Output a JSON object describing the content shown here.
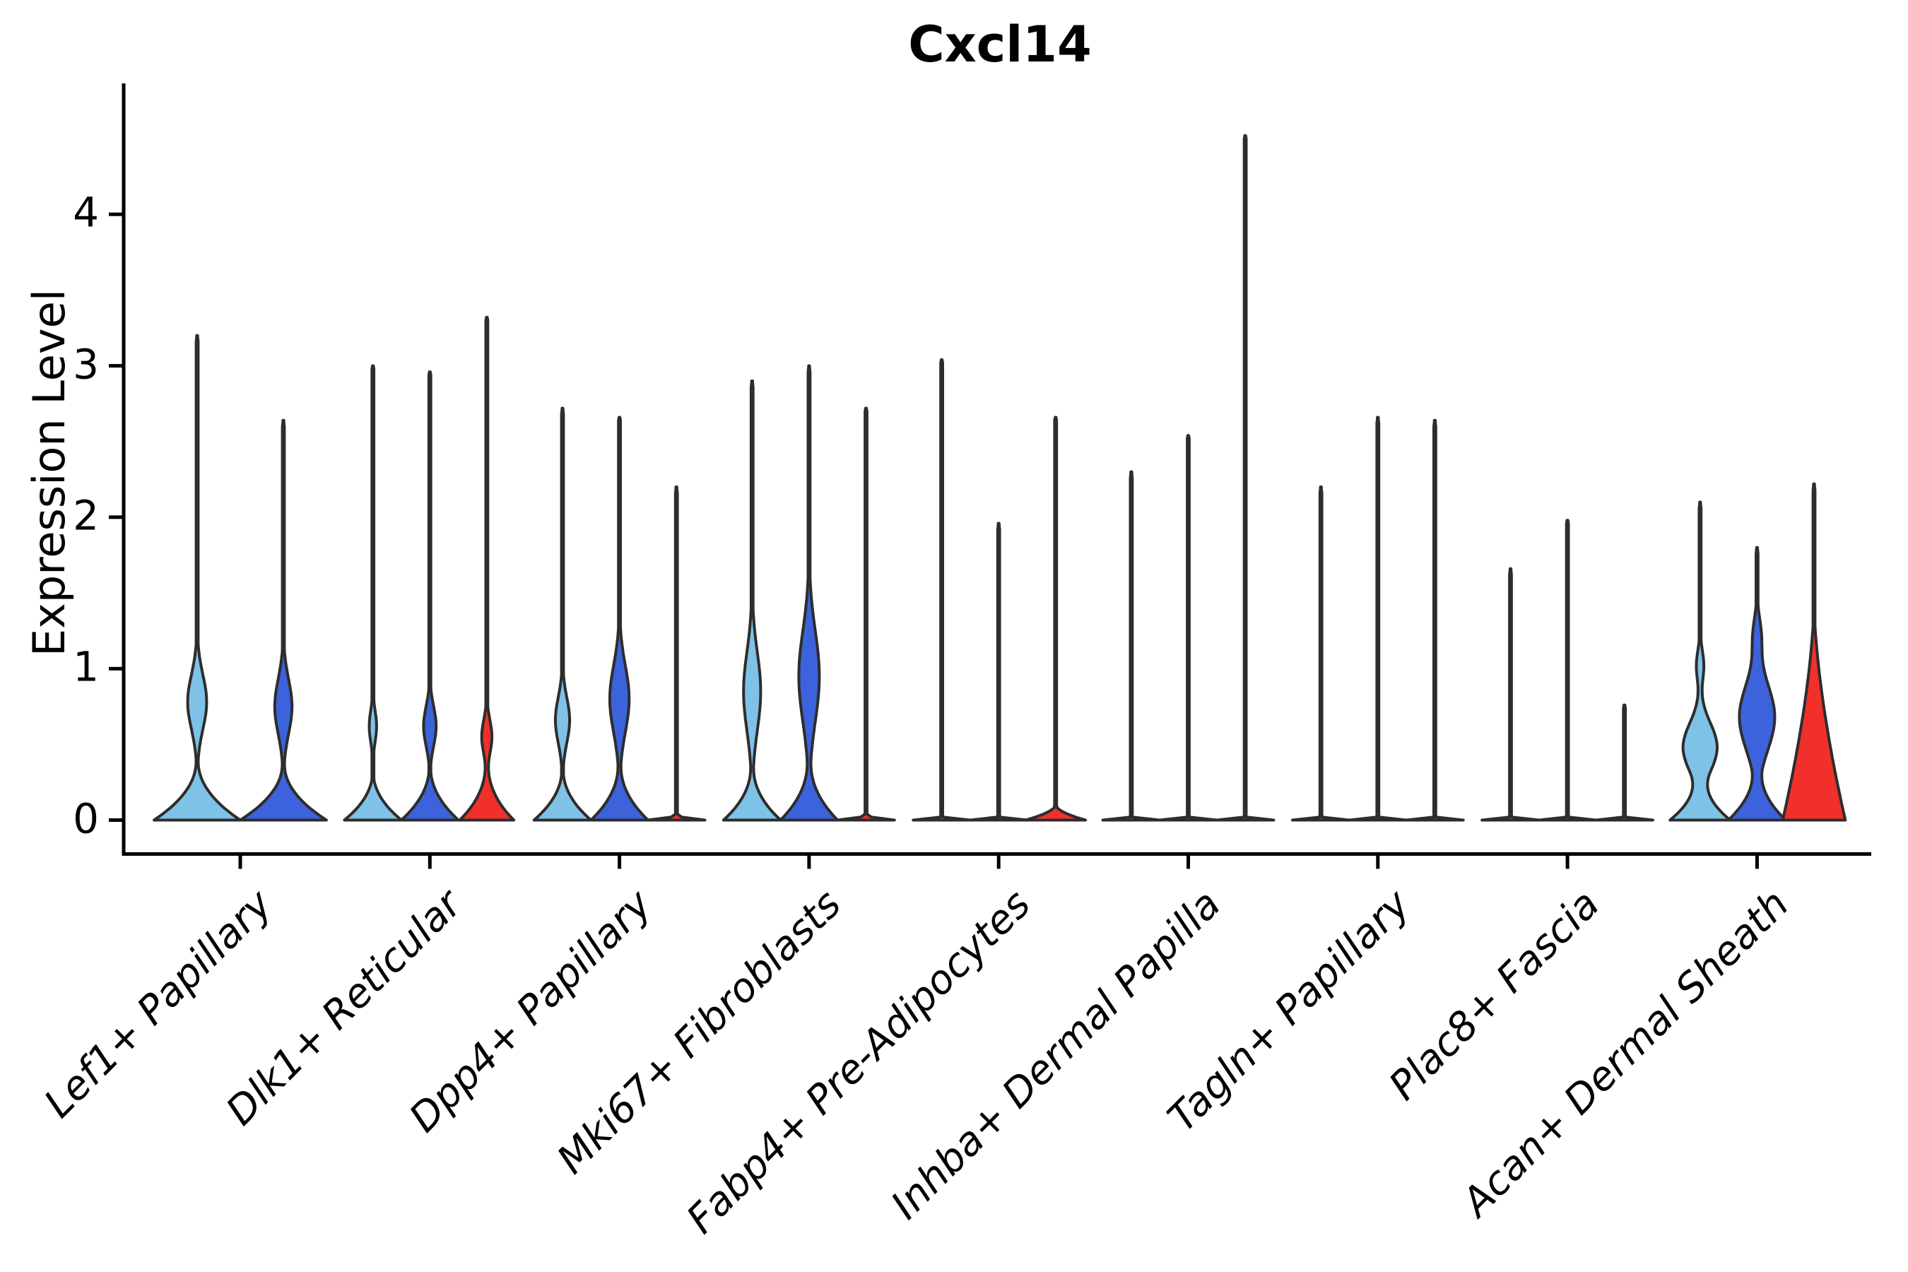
{
  "title": "Cxcl14",
  "ylabel": "Expression Level",
  "colors": {
    "light-blue": "#7FC2E8",
    "dark-blue": "#3D63DC",
    "red": "#F2302B",
    "outline": "#2D2D2D",
    "axis": "#000000"
  },
  "chart_data": {
    "type": "violin",
    "title": "Cxcl14",
    "xlabel": "",
    "ylabel": "Expression Level",
    "ylim": [
      0,
      4.75
    ],
    "y_ticks": [
      0,
      1,
      2,
      3,
      4
    ],
    "grid": false,
    "legend": "none",
    "categories": [
      "Lef1+ Papillary",
      "Dlk1+ Reticular",
      "Dpp4+ Papillary",
      "Mki67+ Fibroblasts",
      "Fabp4+ Pre-Adipocytes",
      "Inhba+ Dermal Papilla",
      "Tagln+ Papillary",
      "Plac8+ Fascia",
      "Acan+ Dermal Sheath"
    ],
    "series": [
      {
        "name": "light-blue",
        "color": "#7FC2E8",
        "max_expression": [
          3.2,
          3.01,
          2.72,
          2.9,
          3.05,
          2.3,
          2.2,
          1.66,
          2.1
        ]
      },
      {
        "name": "dark-blue",
        "color": "#3D63DC",
        "max_expression": [
          2.64,
          2.97,
          2.67,
          3.0,
          1.96,
          2.55,
          2.66,
          1.99,
          1.8
        ]
      },
      {
        "name": "red",
        "color": "#F2302B",
        "max_expression": [
          null,
          3.33,
          2.2,
          2.73,
          2.67,
          4.53,
          2.64,
          0.77,
          2.22
        ]
      }
    ],
    "violins": [
      {
        "category": 0,
        "split": "light-blue",
        "tip": 3.2,
        "w": 1.0,
        "bh": 0.42,
        "p": 2.2,
        "bulges": [
          {
            "c": 0.78,
            "w": 0.22,
            "s": 0.18
          }
        ]
      },
      {
        "category": 0,
        "split": "dark-blue",
        "tip": 2.64,
        "w": 1.0,
        "bh": 0.4,
        "p": 2.2,
        "bulges": [
          {
            "c": 0.75,
            "w": 0.2,
            "s": 0.18
          }
        ]
      },
      {
        "category": 1,
        "split": "light-blue",
        "tip": 3.01,
        "w": 1.0,
        "bh": 0.34,
        "p": 2.2,
        "bulges": [
          {
            "c": 0.62,
            "w": 0.13,
            "s": 0.1
          }
        ]
      },
      {
        "category": 1,
        "split": "dark-blue",
        "tip": 2.97,
        "w": 1.0,
        "bh": 0.38,
        "p": 2.2,
        "bulges": [
          {
            "c": 0.62,
            "w": 0.22,
            "s": 0.13
          }
        ]
      },
      {
        "category": 1,
        "split": "red",
        "tip": 3.33,
        "w": 0.95,
        "bh": 0.46,
        "p": 2.6,
        "bulges": [
          {
            "c": 0.55,
            "w": 0.18,
            "s": 0.11
          }
        ]
      },
      {
        "category": 2,
        "split": "light-blue",
        "tip": 2.72,
        "w": 1.0,
        "bh": 0.36,
        "p": 2.2,
        "bulges": [
          {
            "c": 0.66,
            "w": 0.25,
            "s": 0.15
          }
        ]
      },
      {
        "category": 2,
        "split": "dark-blue",
        "tip": 2.67,
        "w": 1.0,
        "bh": 0.4,
        "p": 2.2,
        "bulges": [
          {
            "c": 0.8,
            "w": 0.34,
            "s": 0.22
          }
        ]
      },
      {
        "category": 2,
        "split": "red",
        "tip": 2.2,
        "w": 1.0,
        "bh": 0.035,
        "p": 2.0,
        "bulges": []
      },
      {
        "category": 3,
        "split": "light-blue",
        "tip": 2.9,
        "w": 1.0,
        "bh": 0.38,
        "p": 2.2,
        "bulges": [
          {
            "c": 0.85,
            "w": 0.3,
            "s": 0.26
          }
        ]
      },
      {
        "category": 3,
        "split": "dark-blue",
        "tip": 3.0,
        "w": 1.0,
        "bh": 0.42,
        "p": 2.2,
        "bulges": [
          {
            "c": 0.95,
            "w": 0.36,
            "s": 0.3
          }
        ]
      },
      {
        "category": 3,
        "split": "red",
        "tip": 2.73,
        "w": 1.0,
        "bh": 0.035,
        "p": 2.0,
        "bulges": []
      },
      {
        "category": 4,
        "split": "light-blue",
        "tip": 3.05,
        "w": 1.0,
        "bh": 0.025,
        "p": 2.0,
        "bulges": []
      },
      {
        "category": 4,
        "split": "dark-blue",
        "tip": 1.96,
        "w": 1.0,
        "bh": 0.025,
        "p": 2.0,
        "bulges": []
      },
      {
        "category": 4,
        "split": "red",
        "tip": 2.67,
        "w": 1.05,
        "bh": 0.1,
        "p": 1.8,
        "bulges": []
      },
      {
        "category": 5,
        "split": "light-blue",
        "tip": 2.3,
        "w": 1.0,
        "bh": 0.02,
        "p": 2.0,
        "bulges": []
      },
      {
        "category": 5,
        "split": "dark-blue",
        "tip": 2.55,
        "w": 1.0,
        "bh": 0.02,
        "p": 2.0,
        "bulges": []
      },
      {
        "category": 5,
        "split": "red",
        "tip": 4.53,
        "w": 1.0,
        "bh": 0.02,
        "p": 2.0,
        "bulges": []
      },
      {
        "category": 6,
        "split": "light-blue",
        "tip": 2.2,
        "w": 1.0,
        "bh": 0.02,
        "p": 2.0,
        "bulges": []
      },
      {
        "category": 6,
        "split": "dark-blue",
        "tip": 2.66,
        "w": 1.0,
        "bh": 0.02,
        "p": 2.0,
        "bulges": []
      },
      {
        "category": 6,
        "split": "red",
        "tip": 2.64,
        "w": 1.0,
        "bh": 0.02,
        "p": 2.0,
        "bulges": []
      },
      {
        "category": 7,
        "split": "light-blue",
        "tip": 1.66,
        "w": 1.0,
        "bh": 0.02,
        "p": 2.0,
        "bulges": []
      },
      {
        "category": 7,
        "split": "dark-blue",
        "tip": 1.99,
        "w": 1.0,
        "bh": 0.02,
        "p": 2.0,
        "bulges": []
      },
      {
        "category": 7,
        "split": "red",
        "tip": 0.77,
        "w": 1.0,
        "bh": 0.02,
        "p": 2.0,
        "bulges": []
      },
      {
        "category": 8,
        "split": "light-blue",
        "tip": 2.1,
        "w": 1.05,
        "bh": 0.32,
        "p": 2.0,
        "bulges": [
          {
            "c": 0.48,
            "w": 0.6,
            "s": 0.16
          },
          {
            "c": 1.02,
            "w": 0.13,
            "s": 0.1
          }
        ]
      },
      {
        "category": 8,
        "split": "dark-blue",
        "tip": 1.8,
        "w": 1.0,
        "bh": 0.36,
        "p": 2.0,
        "bulges": [
          {
            "c": 0.68,
            "w": 0.62,
            "s": 0.22
          },
          {
            "c": 1.22,
            "w": 0.13,
            "s": 0.12
          }
        ]
      },
      {
        "category": 8,
        "split": "red",
        "tip": 2.22,
        "w": 1.1,
        "bh": 1.45,
        "p": 1.6,
        "bulges": []
      }
    ]
  }
}
